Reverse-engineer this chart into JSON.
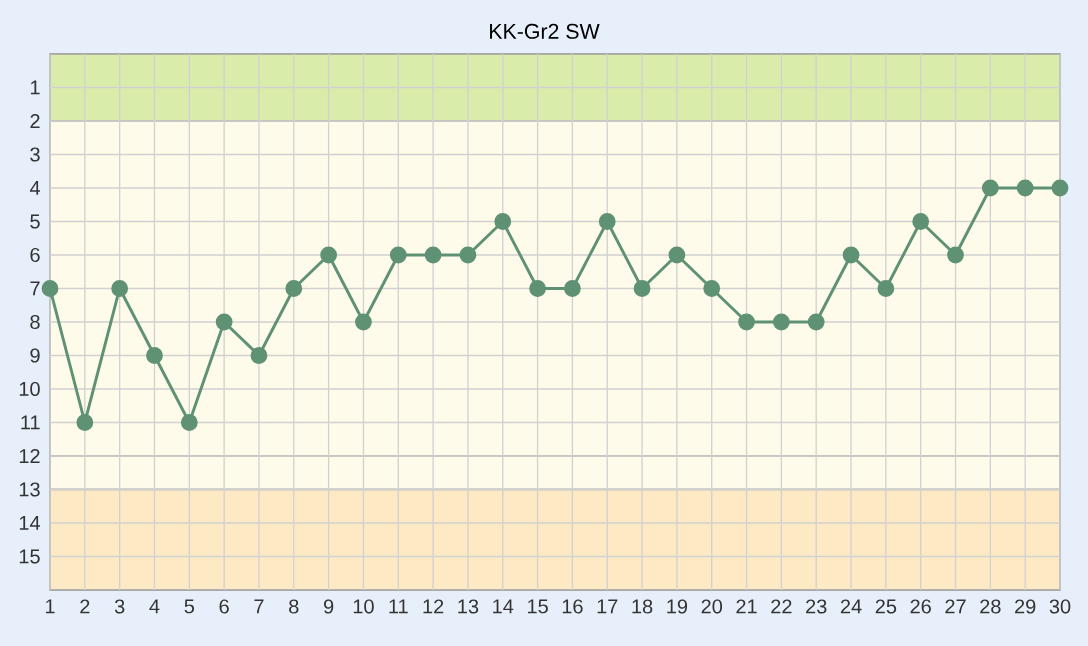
{
  "chart_data": {
    "type": "line",
    "title": "KK-Gr2 SW",
    "x": [
      1,
      2,
      3,
      4,
      5,
      6,
      7,
      8,
      9,
      10,
      11,
      12,
      13,
      14,
      15,
      16,
      17,
      18,
      19,
      20,
      21,
      22,
      23,
      24,
      25,
      26,
      27,
      28,
      29,
      30
    ],
    "series": [
      {
        "color": "#5f9275",
        "values": [
          7,
          11,
          7,
          9,
          11,
          8,
          9,
          7,
          6,
          8,
          6,
          6,
          6,
          5,
          7,
          7,
          5,
          7,
          6,
          7,
          8,
          8,
          8,
          6,
          7,
          5,
          6,
          4,
          4,
          4
        ]
      }
    ],
    "xlim": [
      1,
      30
    ],
    "xticks": [
      1,
      2,
      3,
      4,
      5,
      6,
      7,
      8,
      9,
      10,
      11,
      12,
      13,
      14,
      15,
      16,
      17,
      18,
      19,
      20,
      21,
      22,
      23,
      24,
      25,
      26,
      27,
      28,
      29,
      30
    ],
    "ylim": [
      16,
      0
    ],
    "yticks": [
      1,
      2,
      3,
      4,
      5,
      6,
      7,
      8,
      9,
      10,
      11,
      12,
      13,
      14,
      15
    ],
    "bands": [
      {
        "axis": "y",
        "from": 0,
        "to": 2,
        "color": "#d9ecaa"
      },
      {
        "axis": "y",
        "from": 2,
        "to": 12,
        "color": "#fffbea"
      },
      {
        "axis": "y",
        "from": 12,
        "to": 13,
        "color": "#fffbea"
      },
      {
        "axis": "y",
        "from": 13,
        "to": 16,
        "color": "#fdeac4"
      }
    ],
    "grid": true,
    "marker": "circle",
    "line_style": "solid"
  }
}
